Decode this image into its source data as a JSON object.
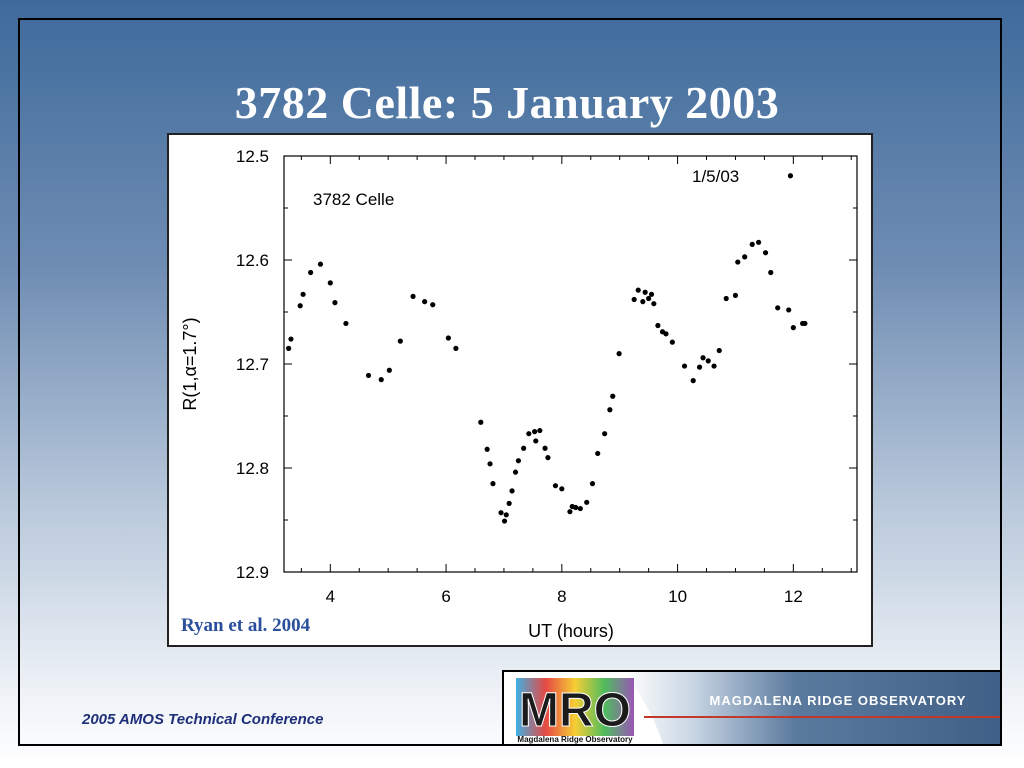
{
  "slide": {
    "title": "3782 Celle: 5 January 2003",
    "citation": "Ryan et al. 2004",
    "footer": "2005 AMOS Technical Conference"
  },
  "logo": {
    "mark_text": "MRO",
    "mark_subtext": "Magdalena Ridge Observatory",
    "banner_text": "MAGDALENA RIDGE OBSERVATORY"
  },
  "chart_data": {
    "type": "scatter",
    "annotations": [
      "3782 Celle",
      "1/5/03"
    ],
    "xlabel": "UT (hours)",
    "ylabel": "R(1,α=1.7°)",
    "xlim": [
      3.2,
      13.1
    ],
    "ylim": [
      12.9,
      12.5
    ],
    "y_inverted": true,
    "x_ticks": [
      4,
      6,
      8,
      10,
      12
    ],
    "y_ticks": [
      12.5,
      12.6,
      12.7,
      12.8,
      12.9
    ],
    "x_tick_labels": [
      "4",
      "6",
      "8",
      "10",
      "12"
    ],
    "y_tick_labels": [
      "12.5",
      "12.6",
      "12.7",
      "12.8",
      "12.9"
    ],
    "x": [
      3.28,
      3.32,
      3.48,
      3.53,
      3.66,
      3.83,
      4.0,
      4.08,
      4.27,
      4.66,
      4.88,
      5.02,
      5.21,
      5.43,
      5.63,
      5.77,
      6.04,
      6.17,
      6.6,
      6.71,
      6.76,
      6.81,
      6.95,
      7.01,
      7.04,
      7.09,
      7.14,
      7.2,
      7.25,
      7.34,
      7.43,
      7.53,
      7.55,
      7.62,
      7.71,
      7.76,
      7.89,
      8.0,
      8.14,
      8.18,
      8.24,
      8.32,
      8.43,
      8.53,
      8.62,
      8.74,
      8.83,
      8.88,
      8.99,
      9.25,
      9.32,
      9.4,
      9.44,
      9.5,
      9.55,
      9.59,
      9.66,
      9.74,
      9.8,
      9.91,
      10.12,
      10.27,
      10.38,
      10.44,
      10.53,
      10.63,
      10.72,
      10.84,
      11.0,
      11.04,
      11.16,
      11.29,
      11.4,
      11.52,
      11.61,
      11.73,
      11.92,
      11.95,
      12.0,
      12.16,
      12.2
    ],
    "y": [
      12.685,
      12.676,
      12.644,
      12.633,
      12.612,
      12.604,
      12.622,
      12.641,
      12.661,
      12.711,
      12.715,
      12.706,
      12.678,
      12.635,
      12.64,
      12.643,
      12.675,
      12.685,
      12.756,
      12.782,
      12.796,
      12.815,
      12.843,
      12.851,
      12.845,
      12.834,
      12.822,
      12.804,
      12.793,
      12.781,
      12.767,
      12.765,
      12.774,
      12.764,
      12.781,
      12.79,
      12.817,
      12.82,
      12.842,
      12.837,
      12.838,
      12.839,
      12.833,
      12.815,
      12.786,
      12.767,
      12.744,
      12.731,
      12.69,
      12.638,
      12.629,
      12.64,
      12.631,
      12.637,
      12.633,
      12.642,
      12.663,
      12.669,
      12.671,
      12.679,
      12.702,
      12.716,
      12.703,
      12.694,
      12.697,
      12.702,
      12.687,
      12.637,
      12.634,
      12.602,
      12.597,
      12.585,
      12.583,
      12.593,
      12.612,
      12.646,
      12.648,
      12.519,
      12.665,
      12.661,
      12.661
    ]
  }
}
